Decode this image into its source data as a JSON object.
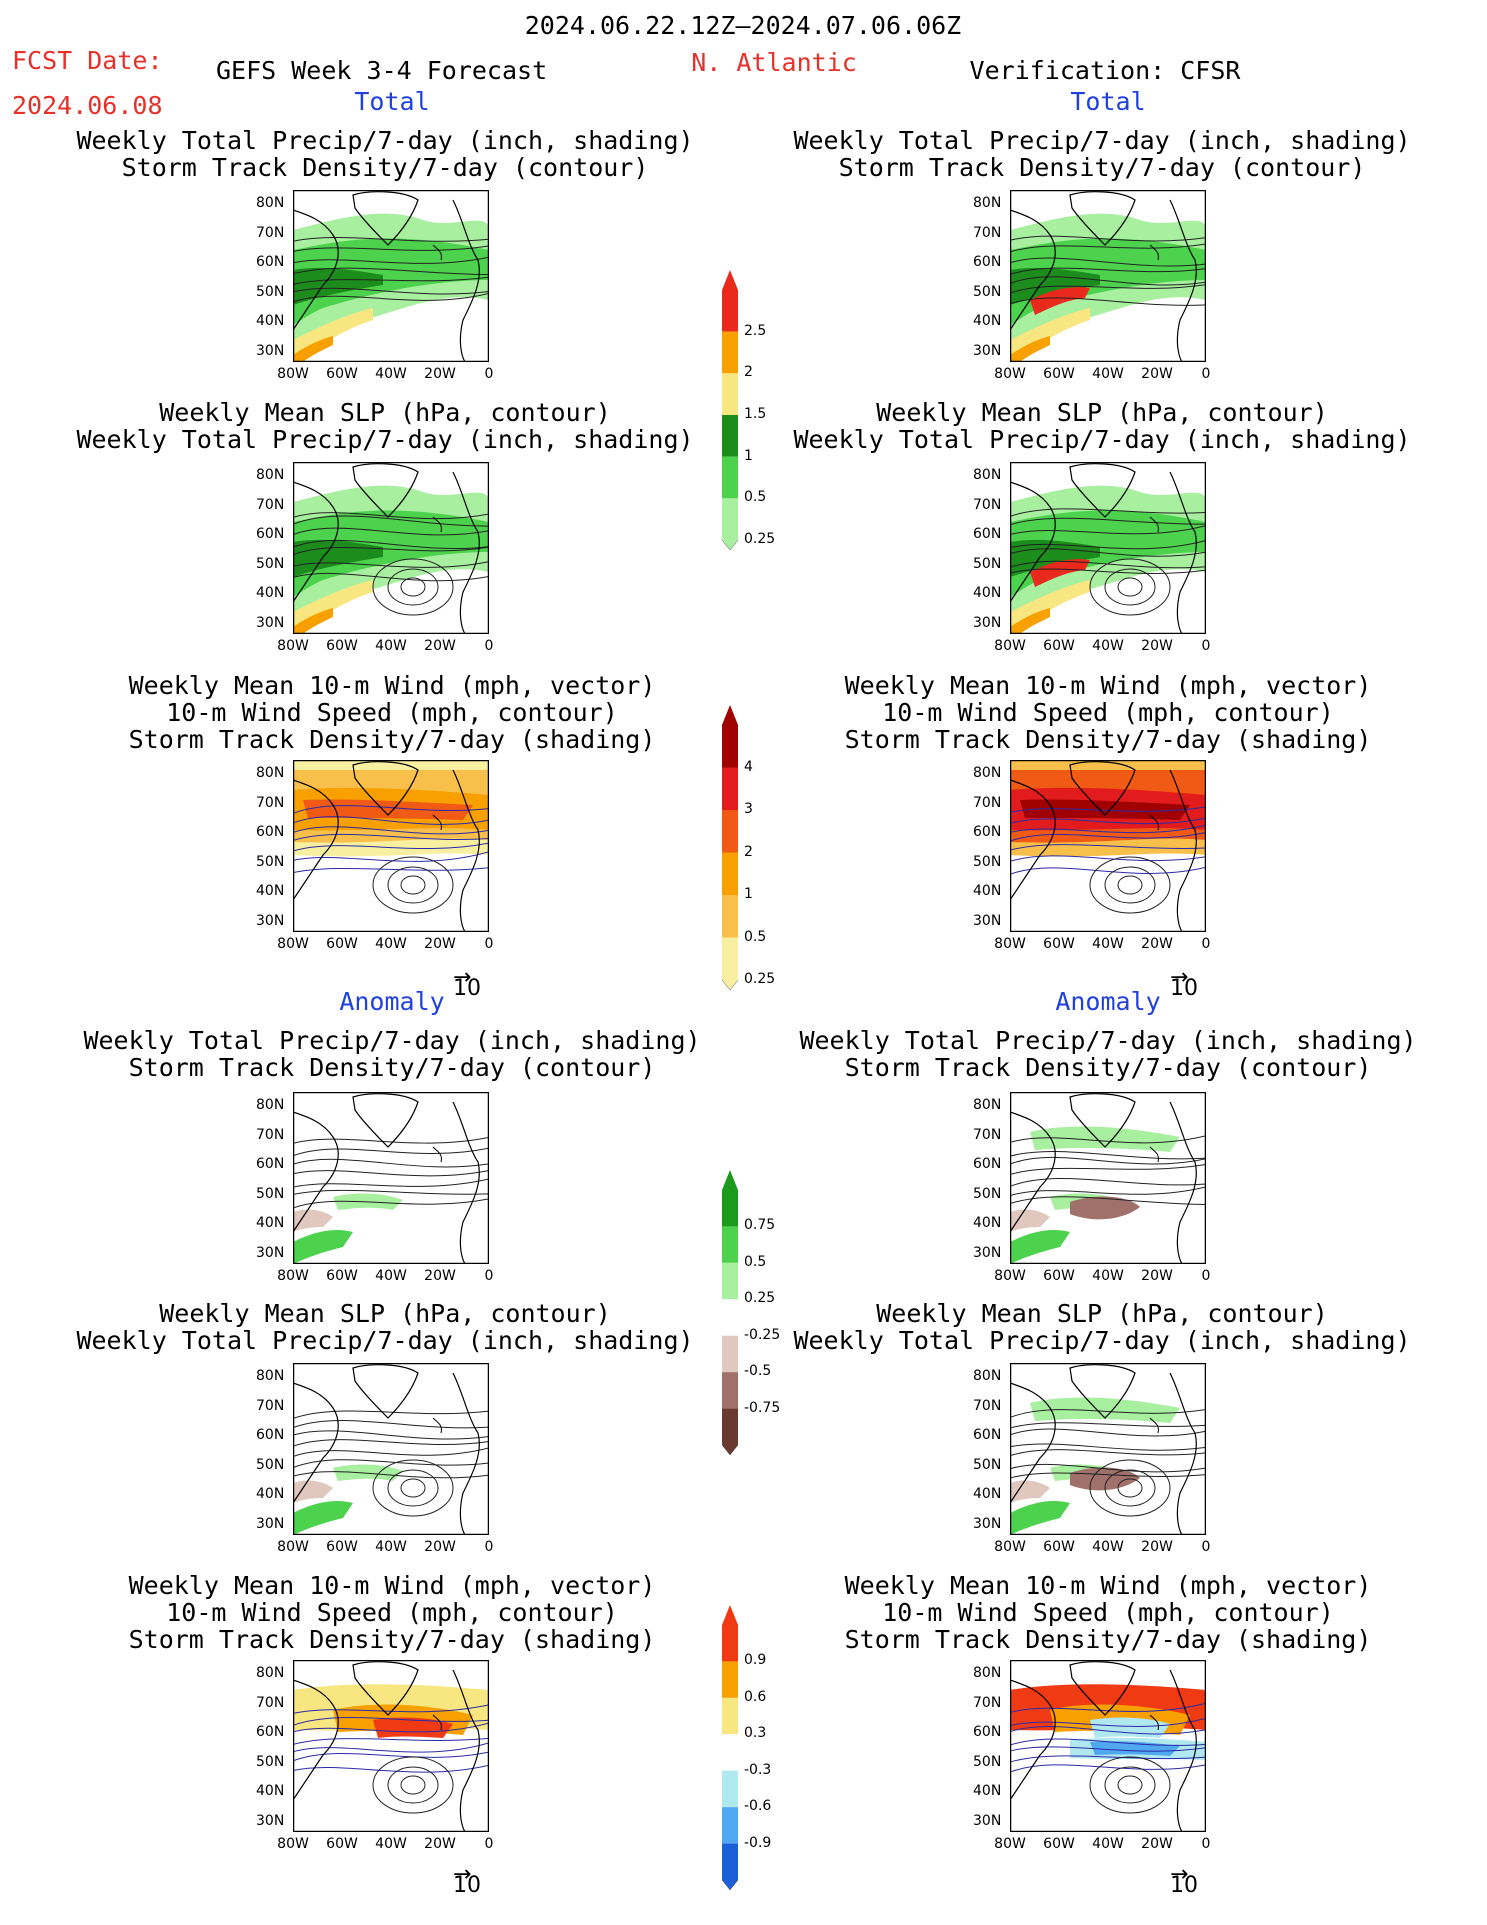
{
  "header": {
    "period": "2024.06.22.12Z–2024.07.06.06Z",
    "fcst_label": "FCST Date:",
    "fcst_date": "2024.06.08",
    "model": "GEFS Week 3-4 Forecast",
    "region": "N. Atlantic",
    "verification": "Verification: CFSR"
  },
  "sections": {
    "total": "Total",
    "anomaly": "Anomaly"
  },
  "panel_titles": {
    "precip_track": "Weekly Total Precip/7-day (inch, shading)\nStorm Track Density/7-day (contour)",
    "slp_precip": "Weekly Mean SLP (hPa, contour)\nWeekly Total Precip/7-day (inch, shading)",
    "wind_track": "Weekly Mean 10-m Wind (mph, vector)\n10-m Wind Speed (mph, contour)\nStorm Track Density/7-day (shading)"
  },
  "axes": {
    "lat": [
      "80N",
      "70N",
      "60N",
      "50N",
      "40N",
      "30N"
    ],
    "lon": [
      "80W",
      "60W",
      "40W",
      "20W",
      "0"
    ]
  },
  "vector_ref": "10",
  "colorbars": {
    "precip_total": {
      "labels": [
        "2.5",
        "2",
        "1.5",
        "1",
        "0.5",
        "0.25"
      ],
      "colors": [
        "#e8291c",
        "#f8a000",
        "#f8e680",
        "#1c8c1c",
        "#4cd24c",
        "#a8f0a0"
      ]
    },
    "track_total": {
      "labels": [
        "4",
        "3",
        "2",
        "1",
        "0.5",
        "0.25"
      ],
      "colors": [
        "#a00000",
        "#e21c1c",
        "#f05a14",
        "#f8a000",
        "#f8c04a",
        "#f8f0a0"
      ]
    },
    "precip_anom": {
      "labels": [
        "0.75",
        "0.5",
        "0.25",
        "-0.25",
        "-0.5",
        "-0.75"
      ],
      "colors": [
        "#1c9a1c",
        "#4cd24c",
        "#a8f0a0",
        "#ffffff",
        "#e0c8be",
        "#a0706a",
        "#6a3a2e"
      ]
    },
    "track_anom": {
      "labels": [
        "0.9",
        "0.6",
        "0.3",
        "-0.3",
        "-0.6",
        "-0.9"
      ],
      "colors": [
        "#f03a14",
        "#f8a000",
        "#f8e680",
        "#ffffff",
        "#b0e8f0",
        "#50a8f0",
        "#1c60d8"
      ]
    }
  }
}
